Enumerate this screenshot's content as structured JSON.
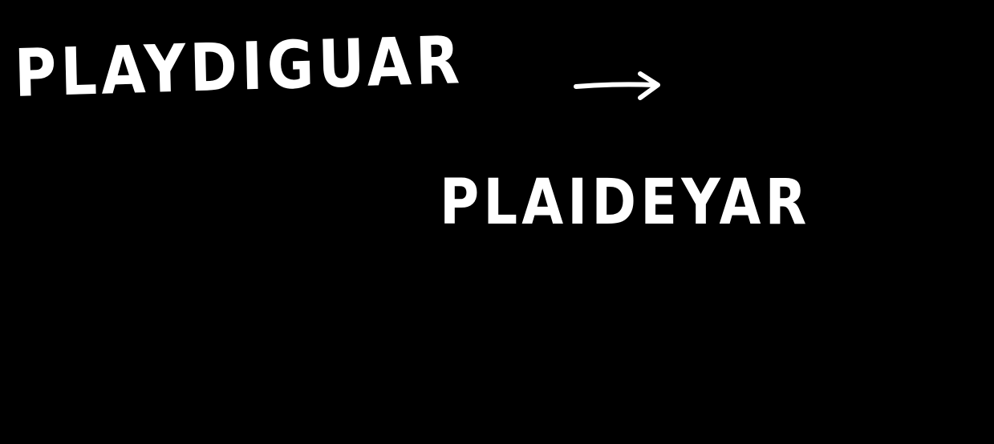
{
  "source_word": "PLAYDIGUAR",
  "target_word": "PLAIDEYAR",
  "arrow_icon": "right-arrow-icon",
  "colors": {
    "background": "#000000",
    "ink": "#ffffff"
  }
}
